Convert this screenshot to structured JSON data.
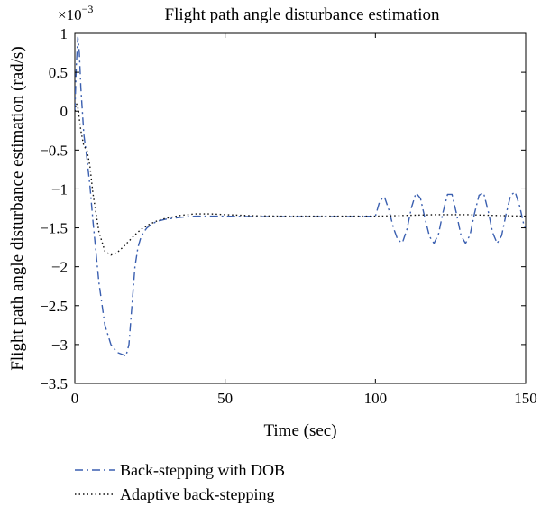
{
  "chart_data": {
    "type": "line",
    "title": "Flight path angle disturbance estimation",
    "xlabel": "Time (sec)",
    "ylabel": "Flight path angle disturbance estimation (rad/s)",
    "y_scale_label": "×10",
    "y_scale_exponent": "−3",
    "xlim": [
      0,
      150
    ],
    "ylim": [
      -3.5,
      1
    ],
    "x_ticks": [
      0,
      50,
      100,
      150
    ],
    "x_tick_labels": [
      "0",
      "50",
      "100",
      "150"
    ],
    "y_ticks": [
      -3.5,
      -3,
      -2.5,
      -2,
      -1.5,
      -1,
      -0.5,
      0,
      0.5,
      1
    ],
    "y_tick_labels": [
      "−3.5",
      "−3",
      "−2.5",
      "−2",
      "−1.5",
      "−1",
      "−0.5",
      "0",
      "0.5",
      "1"
    ],
    "grid": false,
    "legend_position": "below",
    "series": [
      {
        "name": "Back-stepping with DOB",
        "color": "#3a5fb0",
        "dash": "dashdot",
        "x": [
          0,
          0.5,
          1,
          1.5,
          2,
          3,
          4,
          5,
          6,
          8,
          10,
          12,
          14,
          16,
          17,
          18,
          19,
          20,
          21,
          22,
          23,
          24,
          26,
          28,
          30,
          35,
          40,
          45,
          50,
          60,
          70,
          80,
          90,
          100,
          101.5,
          103,
          104.5,
          106,
          107.5,
          109,
          110.5,
          112,
          113.5,
          115,
          116.5,
          118,
          119.5,
          121,
          122.5,
          124,
          125.5,
          127,
          128.5,
          130,
          131.5,
          133,
          134.5,
          136,
          137.5,
          139,
          140.5,
          142,
          143.5,
          145,
          146.5,
          148,
          149.5,
          150
        ],
        "values": [
          0,
          0.6,
          0.95,
          0.75,
          0.3,
          -0.3,
          -0.6,
          -0.95,
          -1.4,
          -2.2,
          -2.75,
          -3.0,
          -3.1,
          -3.13,
          -3.15,
          -3.0,
          -2.5,
          -2.0,
          -1.75,
          -1.62,
          -1.55,
          -1.5,
          -1.44,
          -1.41,
          -1.39,
          -1.365,
          -1.35,
          -1.35,
          -1.35,
          -1.355,
          -1.355,
          -1.355,
          -1.355,
          -1.35,
          -1.15,
          -1.1,
          -1.27,
          -1.5,
          -1.66,
          -1.69,
          -1.52,
          -1.24,
          -1.05,
          -1.12,
          -1.38,
          -1.61,
          -1.7,
          -1.58,
          -1.3,
          -1.07,
          -1.07,
          -1.32,
          -1.6,
          -1.7,
          -1.59,
          -1.31,
          -1.08,
          -1.05,
          -1.28,
          -1.56,
          -1.7,
          -1.6,
          -1.32,
          -1.08,
          -1.04,
          -1.22,
          -1.48,
          -1.5
        ]
      },
      {
        "name": "Adaptive back-stepping",
        "color": "#111111",
        "dash": "dotted",
        "x": [
          0,
          0.5,
          1,
          1.5,
          2,
          3,
          4,
          5,
          6,
          8,
          10,
          12,
          14,
          16,
          18,
          20,
          22,
          25,
          28,
          30,
          35,
          40,
          45,
          50,
          60,
          70,
          80,
          90,
          100,
          110,
          120,
          130,
          140,
          150
        ],
        "values": [
          0,
          0.1,
          0.05,
          -0.1,
          -0.25,
          -0.45,
          -0.5,
          -0.7,
          -1.05,
          -1.55,
          -1.8,
          -1.85,
          -1.82,
          -1.75,
          -1.67,
          -1.59,
          -1.52,
          -1.45,
          -1.4,
          -1.38,
          -1.34,
          -1.32,
          -1.32,
          -1.33,
          -1.345,
          -1.35,
          -1.35,
          -1.35,
          -1.35,
          -1.34,
          -1.33,
          -1.33,
          -1.34,
          -1.35
        ]
      }
    ]
  }
}
